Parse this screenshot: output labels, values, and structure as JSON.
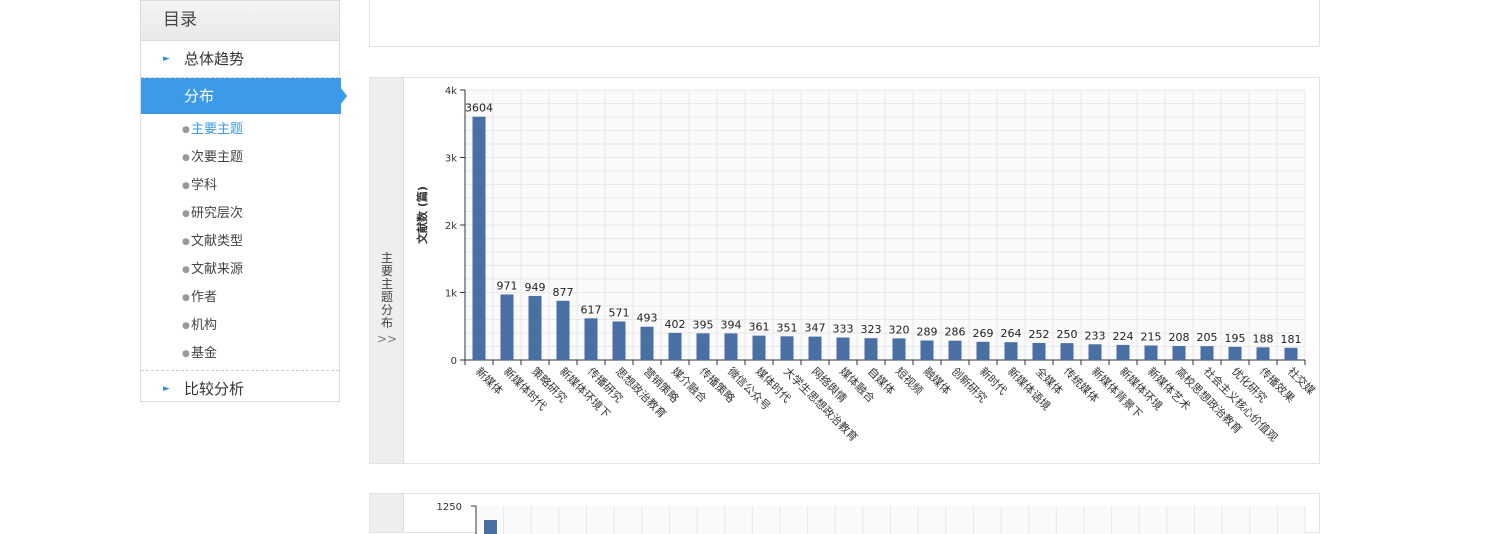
{
  "sidebar": {
    "title": "目录",
    "sections": [
      {
        "label": "总体趋势",
        "active": false
      },
      {
        "label": "分布",
        "active": true
      },
      {
        "label": "比较分析",
        "active": false
      }
    ],
    "sub_items": [
      "主要主题",
      "次要主题",
      "学科",
      "研究层次",
      "文献类型",
      "文献来源",
      "作者",
      "机构",
      "基金"
    ],
    "selected_sub": "主要主题"
  },
  "panel1": {
    "tab_label": "主要主题分布",
    "tab_chevron": ">>"
  },
  "panel2": {
    "first_tick": "1250"
  },
  "colors": {
    "bar": "#4a6fa5",
    "accent": "#3b9be8",
    "grid": "#e8e8e8"
  },
  "chart_data": {
    "type": "bar",
    "ylabel": "文献数 (篇)",
    "ylim": [
      0,
      4000
    ],
    "yticks": [
      {
        "value": 0,
        "label": "0"
      },
      {
        "value": 1000,
        "label": "1k"
      },
      {
        "value": 2000,
        "label": "2k"
      },
      {
        "value": 3000,
        "label": "3k"
      },
      {
        "value": 4000,
        "label": "4k"
      }
    ],
    "grid": true,
    "categories": [
      "新媒体",
      "新媒体时代",
      "策略研究",
      "新媒体环境下",
      "传播研究",
      "思想政治教育",
      "营销策略",
      "媒介融合",
      "传播策略",
      "微信公众号",
      "媒体时代",
      "大学生思想政治教育",
      "网络舆情",
      "媒体融合",
      "自媒体",
      "短视频",
      "融媒体",
      "创新研究",
      "新时代",
      "新媒体语境",
      "全媒体",
      "传统媒体",
      "新媒体背景下",
      "新媒体环境",
      "新媒体艺术",
      "高校思想政治教育",
      "社会主义核心价值观",
      "优化研究",
      "传播效果",
      "社交媒"
    ],
    "values": [
      3604,
      971,
      949,
      877,
      617,
      571,
      493,
      402,
      395,
      394,
      361,
      351,
      347,
      333,
      323,
      320,
      289,
      286,
      269,
      264,
      252,
      250,
      233,
      224,
      215,
      208,
      205,
      195,
      188,
      181
    ]
  }
}
